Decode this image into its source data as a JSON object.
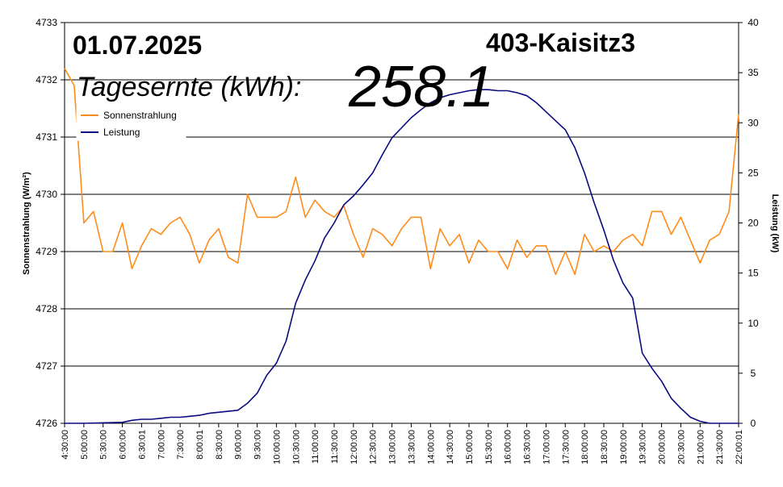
{
  "header": {
    "date": "01.07.2025",
    "station": "403-Kaisitz3",
    "yield_label": "Tagesernte (kWh):",
    "yield_value": "258.1"
  },
  "chart_data": {
    "type": "line",
    "x_tick_labels": [
      "4:30:00",
      "5:00:00",
      "5:30:00",
      "6:00:00",
      "6:30:01",
      "7:00:00",
      "7:30:00",
      "8:00:01",
      "8:30:00",
      "9:00:00",
      "9:30:00",
      "10:00:00",
      "10:30:00",
      "11:00:00",
      "11:30:00",
      "12:00:00",
      "12:30:00",
      "13:00:00",
      "13:30:00",
      "14:00:00",
      "14:30:00",
      "15:00:00",
      "15:30:00",
      "16:00:00",
      "16:30:00",
      "17:00:00",
      "17:30:00",
      "18:00:00",
      "18:30:00",
      "19:00:00",
      "19:30:00",
      "20:00:00",
      "20:30:00",
      "21:00:00",
      "21:30:00",
      "22:00:01"
    ],
    "x_range": [
      "4:30:00",
      "22:00:01"
    ],
    "left_axis": {
      "label": "Sonnenstrahlung (W/m²)",
      "ticks": [
        "4726",
        "4727",
        "4728",
        "4729",
        "4730",
        "4731",
        "4732",
        "4733"
      ],
      "ylim": [
        4726,
        4733
      ]
    },
    "right_axis": {
      "label": "Leistung (kW)",
      "ticks": [
        "0",
        "5",
        "10",
        "15",
        "20",
        "25",
        "30",
        "35",
        "40"
      ],
      "ylim": [
        0,
        40
      ]
    },
    "grid": "horizontal",
    "legend_placement": "top-left",
    "series": [
      {
        "name": "Sonnenstrahlung",
        "color": "#ff8c1a",
        "axis": "left",
        "x": [
          "4:30:00",
          "4:45:00",
          "5:00:00",
          "5:15:00",
          "5:30:00",
          "5:45:00",
          "6:00:00",
          "6:15:00",
          "6:30:00",
          "6:45:00",
          "7:00:00",
          "7:15:00",
          "7:30:00",
          "7:45:00",
          "8:00:00",
          "8:15:00",
          "8:30:00",
          "8:45:00",
          "9:00:00",
          "9:15:00",
          "9:30:00",
          "9:45:00",
          "10:00:00",
          "10:15:00",
          "10:30:00",
          "10:45:00",
          "11:00:00",
          "11:15:00",
          "11:30:00",
          "11:45:00",
          "12:00:00",
          "12:15:00",
          "12:30:00",
          "12:45:00",
          "13:00:00",
          "13:15:00",
          "13:30:00",
          "13:45:00",
          "14:00:00",
          "14:15:00",
          "14:30:00",
          "14:45:00",
          "15:00:00",
          "15:15:00",
          "15:30:00",
          "15:45:00",
          "16:00:00",
          "16:15:00",
          "16:30:00",
          "16:45:00",
          "17:00:00",
          "17:15:00",
          "17:30:00",
          "17:45:00",
          "18:00:00",
          "18:15:00",
          "18:30:00",
          "18:45:00",
          "19:00:00",
          "19:15:00",
          "19:30:00",
          "19:45:00",
          "20:00:00",
          "20:15:00",
          "20:30:00",
          "20:45:00",
          "21:00:00",
          "21:15:00",
          "21:30:00",
          "21:45:00",
          "22:00:00"
        ],
        "values": [
          4732.2,
          4731.9,
          4729.5,
          4729.7,
          4729.0,
          4729.0,
          4729.5,
          4728.7,
          4729.1,
          4729.4,
          4729.3,
          4729.5,
          4729.6,
          4729.3,
          4728.8,
          4729.2,
          4729.4,
          4728.9,
          4728.8,
          4730.0,
          4729.6,
          4729.6,
          4729.6,
          4729.7,
          4730.3,
          4729.6,
          4729.9,
          4729.7,
          4729.6,
          4729.8,
          4729.3,
          4728.9,
          4729.4,
          4729.3,
          4729.1,
          4729.4,
          4729.6,
          4729.6,
          4728.7,
          4729.4,
          4729.1,
          4729.3,
          4728.8,
          4729.2,
          4729.0,
          4729.0,
          4728.7,
          4729.2,
          4728.9,
          4729.1,
          4729.1,
          4728.6,
          4729.0,
          4728.6,
          4729.3,
          4729.0,
          4729.1,
          4729.0,
          4729.2,
          4729.3,
          4729.1,
          4729.7,
          4729.7,
          4729.3,
          4729.6,
          4729.2,
          4728.8,
          4729.2,
          4729.3,
          4729.7,
          4731.4
        ]
      },
      {
        "name": "Leistung",
        "color": "#0a0a80",
        "axis": "right",
        "x": [
          "4:30:00",
          "5:00:00",
          "5:30:00",
          "6:00:00",
          "6:15:00",
          "6:30:00",
          "6:45:00",
          "7:00:00",
          "7:15:00",
          "7:30:00",
          "7:45:00",
          "8:00:00",
          "8:15:00",
          "8:30:00",
          "8:45:00",
          "9:00:00",
          "9:15:00",
          "9:30:00",
          "9:45:00",
          "10:00:00",
          "10:15:00",
          "10:30:00",
          "10:45:00",
          "11:00:00",
          "11:15:00",
          "11:30:00",
          "11:45:00",
          "12:00:00",
          "12:15:00",
          "12:30:00",
          "12:45:00",
          "13:00:00",
          "13:15:00",
          "13:30:00",
          "13:45:00",
          "14:00:00",
          "14:15:00",
          "14:30:00",
          "14:45:00",
          "15:00:00",
          "15:15:00",
          "15:30:00",
          "15:45:00",
          "16:00:00",
          "16:15:00",
          "16:30:00",
          "16:45:00",
          "17:00:00",
          "17:15:00",
          "17:30:00",
          "17:45:00",
          "18:00:00",
          "18:15:00",
          "18:30:00",
          "18:45:00",
          "19:00:00",
          "19:15:00",
          "19:30:00",
          "19:45:00",
          "20:00:00",
          "20:15:00",
          "20:30:00",
          "20:45:00",
          "21:00:00",
          "21:15:00",
          "21:30:00",
          "21:45:00",
          "22:00:00"
        ],
        "values": [
          0,
          0,
          0.05,
          0.1,
          0.3,
          0.4,
          0.4,
          0.5,
          0.6,
          0.6,
          0.7,
          0.8,
          1.0,
          1.1,
          1.2,
          1.3,
          2.0,
          3.0,
          4.8,
          6.0,
          8.2,
          12.0,
          14.3,
          16.2,
          18.5,
          20.0,
          21.8,
          22.7,
          23.8,
          25.0,
          26.8,
          28.5,
          29.5,
          30.5,
          31.3,
          32.0,
          32.5,
          32.8,
          33.0,
          33.2,
          33.3,
          33.3,
          33.2,
          33.2,
          33.0,
          32.7,
          32.0,
          31.1,
          30.2,
          29.3,
          27.5,
          25.0,
          22.0,
          19.3,
          16.3,
          14.0,
          12.5,
          7.0,
          5.5,
          4.2,
          2.5,
          1.5,
          0.6,
          0.2,
          0,
          0,
          0,
          0
        ]
      }
    ]
  }
}
